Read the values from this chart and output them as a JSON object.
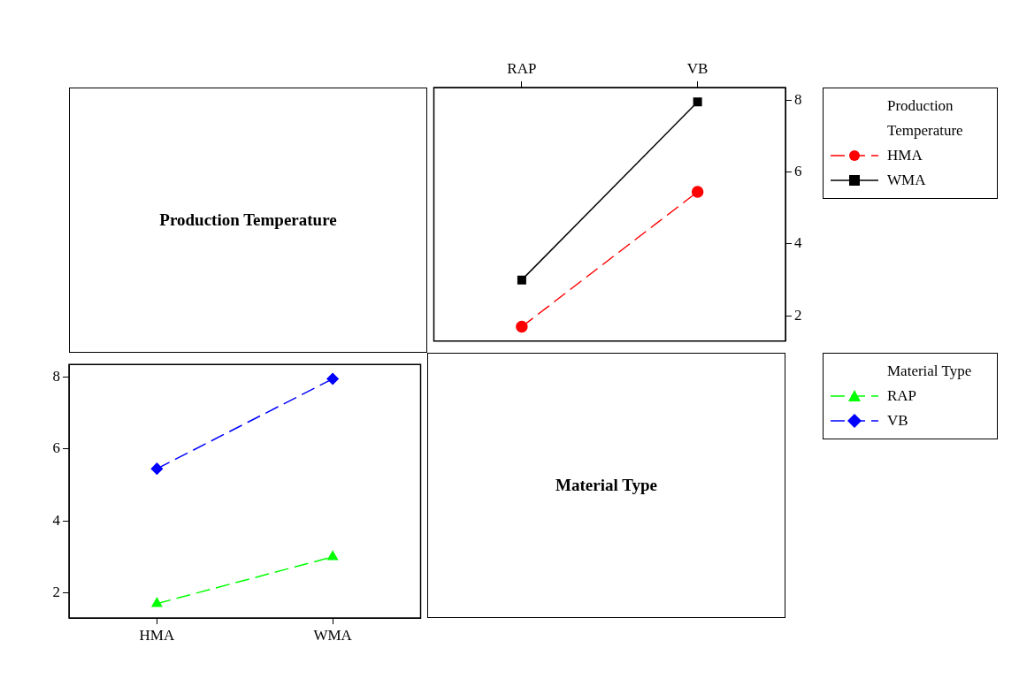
{
  "chart_data": [
    {
      "type": "other",
      "title": "Production Temperature"
    },
    {
      "type": "line",
      "categories": [
        "RAP",
        "VB"
      ],
      "legend_title": "Production Temperature",
      "legend": "right",
      "grid": false,
      "ylim": [
        1.3,
        8.35
      ],
      "yticks": [
        2,
        4,
        6,
        8
      ],
      "series": [
        {
          "name": "HMA",
          "color": "#ff0000",
          "values": [
            1.7,
            5.45
          ],
          "marker": "circle",
          "line_style": "dashed"
        },
        {
          "name": "WMA",
          "color": "#000000",
          "values": [
            3.0,
            7.95
          ],
          "marker": "square",
          "line_style": "solid"
        }
      ]
    },
    {
      "type": "line",
      "categories": [
        "HMA",
        "WMA"
      ],
      "legend_title": "Material Type",
      "legend": "right",
      "grid": false,
      "ylim": [
        1.3,
        8.35
      ],
      "yticks": [
        2,
        4,
        6,
        8
      ],
      "series": [
        {
          "name": "RAP",
          "color": "#00ff00",
          "values": [
            1.7,
            3.0
          ],
          "marker": "triangle",
          "line_style": "dashed"
        },
        {
          "name": "VB",
          "color": "#0000ff",
          "values": [
            5.45,
            7.95
          ],
          "marker": "diamond",
          "line_style": "dashed"
        }
      ]
    },
    {
      "type": "other",
      "title": "Material Type"
    }
  ]
}
